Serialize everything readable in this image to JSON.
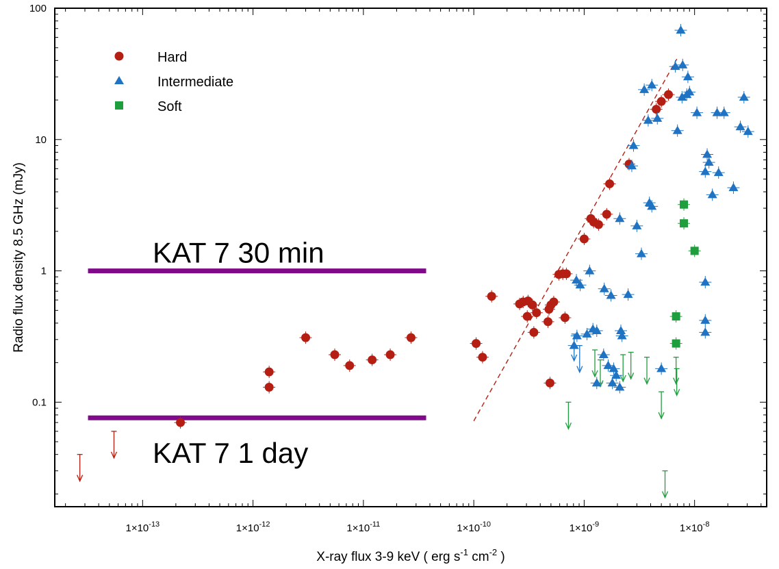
{
  "chart_data": {
    "type": "scatter",
    "xlabel": "X-ray flux 3-9 keV ( erg s",
    "xlabel_sup1": "-1",
    "xlabel_mid": " cm",
    "xlabel_sup2": "-2",
    "xlabel_end": " )",
    "ylabel": "Radio flux density 8.5 GHz (mJy)",
    "x_scale": "log",
    "y_scale": "log",
    "xlim": [
      1.6e-14,
      4.5e-08
    ],
    "ylim": [
      0.016,
      100
    ],
    "x_ticks": [
      {
        "value": 1e-13,
        "base": "1×10",
        "exp": "-13"
      },
      {
        "value": 1e-12,
        "base": "1×10",
        "exp": "-12"
      },
      {
        "value": 1e-11,
        "base": "1×10",
        "exp": "-11"
      },
      {
        "value": 1e-10,
        "base": "1×10",
        "exp": "-10"
      },
      {
        "value": 1e-09,
        "base": "1×10",
        "exp": "-9"
      },
      {
        "value": 1e-08,
        "base": "1×10",
        "exp": "-8"
      }
    ],
    "y_ticks": [
      {
        "value": 100,
        "label": "100"
      },
      {
        "value": 10,
        "label": "10"
      },
      {
        "value": 1,
        "label": "1"
      },
      {
        "value": 0.1,
        "label": "0.1"
      }
    ],
    "legend": {
      "position": "top-left"
    },
    "series": [
      {
        "name": "Hard",
        "marker": "circle",
        "color": "#b51e12",
        "points": [
          [
            2.2e-13,
            0.07
          ],
          [
            1.4e-12,
            0.17
          ],
          [
            1.4e-12,
            0.13
          ],
          [
            3e-12,
            0.31
          ],
          [
            5.5e-12,
            0.23
          ],
          [
            7.5e-12,
            0.19
          ],
          [
            1.2e-11,
            0.21
          ],
          [
            1.75e-11,
            0.23
          ],
          [
            2.7e-11,
            0.31
          ],
          [
            1.05e-10,
            0.28
          ],
          [
            1.2e-10,
            0.22
          ],
          [
            1.45e-10,
            0.64
          ],
          [
            2.6e-10,
            0.56
          ],
          [
            2.8e-10,
            0.58
          ],
          [
            3.1e-10,
            0.59
          ],
          [
            3.4e-10,
            0.55
          ],
          [
            3.05e-10,
            0.45
          ],
          [
            3.7e-10,
            0.48
          ],
          [
            3.5e-10,
            0.34
          ],
          [
            4.7e-10,
            0.41
          ],
          [
            4.8e-10,
            0.51
          ],
          [
            5e-10,
            0.55
          ],
          [
            5.3e-10,
            0.58
          ],
          [
            6.7e-10,
            0.44
          ],
          [
            4.9e-10,
            0.14
          ],
          [
            5.9e-10,
            0.94
          ],
          [
            6.4e-10,
            0.95
          ],
          [
            6.9e-10,
            0.95
          ],
          [
            1e-09,
            1.75
          ],
          [
            1.15e-09,
            2.5
          ],
          [
            1.22e-09,
            2.35
          ],
          [
            1.35e-09,
            2.25
          ],
          [
            1.6e-09,
            2.7
          ],
          [
            1.7e-09,
            4.6
          ],
          [
            2.55e-09,
            6.5
          ],
          [
            4.5e-09,
            17
          ],
          [
            5e-09,
            19.5
          ],
          [
            5.8e-09,
            22
          ]
        ]
      },
      {
        "name": "Intermediate",
        "marker": "triangle",
        "color": "#1f73c2",
        "points": [
          [
            7.5e-09,
            68
          ],
          [
            6.7e-09,
            36
          ],
          [
            7.8e-09,
            37
          ],
          [
            3.5e-09,
            24
          ],
          [
            4.1e-09,
            26
          ],
          [
            8.7e-09,
            30
          ],
          [
            8.5e-09,
            22
          ],
          [
            9e-09,
            23
          ],
          [
            7.7e-09,
            21
          ],
          [
            3.8e-09,
            14
          ],
          [
            4.6e-09,
            14.5
          ],
          [
            7e-09,
            11.7
          ],
          [
            1.05e-08,
            16
          ],
          [
            1.6e-08,
            16
          ],
          [
            1.85e-08,
            16
          ],
          [
            2.6e-08,
            12.5
          ],
          [
            2.8e-08,
            21
          ],
          [
            3.05e-08,
            11.5
          ],
          [
            2.8e-09,
            9
          ],
          [
            2.7e-09,
            6.3
          ],
          [
            1.3e-08,
            7.7
          ],
          [
            1.35e-08,
            6.7
          ],
          [
            1.25e-08,
            5.7
          ],
          [
            1.65e-08,
            5.6
          ],
          [
            1.45e-08,
            3.8
          ],
          [
            2.25e-08,
            4.3
          ],
          [
            3.9e-09,
            3.3
          ],
          [
            4.1e-09,
            3.1
          ],
          [
            2.1e-09,
            2.5
          ],
          [
            3e-09,
            2.2
          ],
          [
            3.3e-09,
            1.35
          ],
          [
            1.25e-08,
            0.82
          ],
          [
            1.12e-09,
            1.0
          ],
          [
            1.52e-09,
            0.73
          ],
          [
            1.75e-09,
            0.65
          ],
          [
            2.5e-09,
            0.66
          ],
          [
            8.5e-10,
            0.85
          ],
          [
            9.2e-10,
            0.78
          ],
          [
            1.25e-08,
            0.42
          ],
          [
            1.25e-08,
            0.34
          ],
          [
            8.1e-10,
            0.27
          ],
          [
            8.6e-10,
            0.32
          ],
          [
            1.06e-09,
            0.33
          ],
          [
            1.2e-09,
            0.36
          ],
          [
            1.3e-09,
            0.35
          ],
          [
            2.15e-09,
            0.35
          ],
          [
            2.2e-09,
            0.32
          ],
          [
            1.5e-09,
            0.23
          ],
          [
            1.65e-09,
            0.19
          ],
          [
            1.85e-09,
            0.18
          ],
          [
            1.3e-09,
            0.14
          ],
          [
            1.8e-09,
            0.14
          ],
          [
            1.95e-09,
            0.16
          ],
          [
            2.1e-09,
            0.13
          ],
          [
            5e-09,
            0.18
          ]
        ]
      },
      {
        "name": "Soft",
        "marker": "square",
        "color": "#1e9e3c",
        "points": [
          [
            8e-09,
            3.2
          ],
          [
            8e-09,
            2.3
          ],
          [
            1e-08,
            1.42
          ],
          [
            6.8e-09,
            0.45
          ],
          [
            6.8e-09,
            0.28
          ]
        ]
      }
    ],
    "upper_limits": [
      {
        "series": "Hard",
        "points": [
          [
            2.7e-14,
            0.04
          ],
          [
            5.5e-14,
            0.06
          ]
        ]
      },
      {
        "series": "Intermediate",
        "points": [
          [
            8.1e-10,
            0.33
          ],
          [
            9.1e-10,
            0.27
          ]
        ]
      },
      {
        "series": "Soft",
        "points": [
          [
            7.2e-10,
            0.1
          ],
          [
            1.25e-09,
            0.25
          ],
          [
            1.4e-09,
            0.21
          ],
          [
            2.25e-09,
            0.23
          ],
          [
            2.65e-09,
            0.24
          ],
          [
            3.7e-09,
            0.22
          ],
          [
            5e-09,
            0.12
          ],
          [
            6.8e-09,
            0.22
          ],
          [
            6.9e-09,
            0.18
          ],
          [
            5.4e-09,
            0.03
          ]
        ]
      }
    ],
    "fit_line": {
      "color": "#b51e12",
      "from": [
        1e-10,
        0.072
      ],
      "to": [
        6.9e-09,
        41
      ]
    },
    "sensitivity_lines": [
      {
        "label": "KAT 7  30 min",
        "y": 1.0,
        "x_range": [
          3.2e-14,
          3.7e-11
        ],
        "color": "#800a8a",
        "label_position": "above"
      },
      {
        "label": "KAT 7  1 day",
        "y": 0.076,
        "x_range": [
          3.2e-14,
          3.7e-11
        ],
        "color": "#800a8a",
        "label_position": "below"
      }
    ]
  }
}
